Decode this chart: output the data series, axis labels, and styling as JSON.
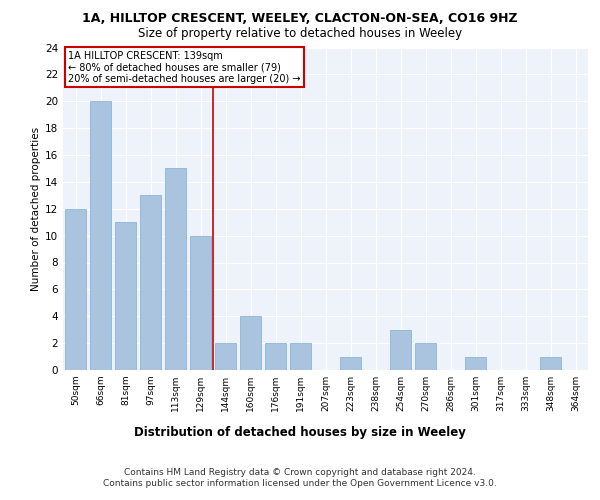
{
  "title1": "1A, HILLTOP CRESCENT, WEELEY, CLACTON-ON-SEA, CO16 9HZ",
  "title2": "Size of property relative to detached houses in Weeley",
  "xlabel": "Distribution of detached houses by size in Weeley",
  "ylabel": "Number of detached properties",
  "categories": [
    "50sqm",
    "66sqm",
    "81sqm",
    "97sqm",
    "113sqm",
    "129sqm",
    "144sqm",
    "160sqm",
    "176sqm",
    "191sqm",
    "207sqm",
    "223sqm",
    "238sqm",
    "254sqm",
    "270sqm",
    "286sqm",
    "301sqm",
    "317sqm",
    "333sqm",
    "348sqm",
    "364sqm"
  ],
  "values": [
    12,
    20,
    11,
    13,
    15,
    10,
    2,
    4,
    2,
    2,
    0,
    1,
    0,
    3,
    2,
    0,
    1,
    0,
    0,
    1,
    0
  ],
  "bar_color": "#aac4e0",
  "bar_edge_color": "#7aafd4",
  "vline_color": "#cc0000",
  "vline_x": 5.5,
  "annotation_text": "1A HILLTOP CRESCENT: 139sqm\n← 80% of detached houses are smaller (79)\n20% of semi-detached houses are larger (20) →",
  "annotation_box_color": "#ffffff",
  "annotation_box_edge_color": "#cc0000",
  "ylim": [
    0,
    24
  ],
  "yticks": [
    0,
    2,
    4,
    6,
    8,
    10,
    12,
    14,
    16,
    18,
    20,
    22,
    24
  ],
  "background_color": "#eef2fa",
  "footer_text": "Contains HM Land Registry data © Crown copyright and database right 2024.\nContains public sector information licensed under the Open Government Licence v3.0.",
  "grid_color": "#ffffff",
  "title1_fontsize": 9,
  "title2_fontsize": 8.5,
  "xlabel_fontsize": 8.5,
  "ylabel_fontsize": 7.5,
  "tick_fontsize": 6.5,
  "annotation_fontsize": 7,
  "footer_fontsize": 6.5
}
